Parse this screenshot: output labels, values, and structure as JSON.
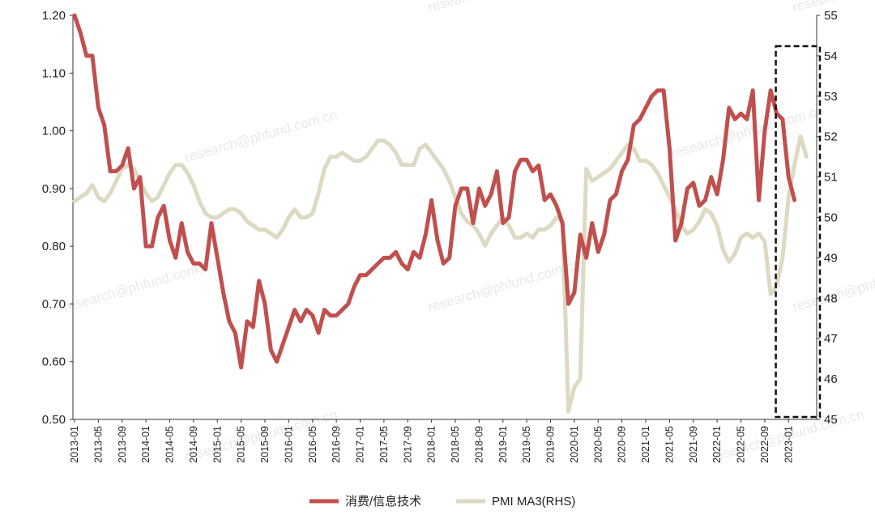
{
  "chart_data": {
    "type": "line",
    "title": "",
    "xlabel": "",
    "ylabel": "",
    "x_tick_labels": [
      "2013-01",
      "2013-05",
      "2013-09",
      "2014-01",
      "2014-05",
      "2014-09",
      "2015-01",
      "2015-05",
      "2015-09",
      "2016-01",
      "2016-05",
      "2016-09",
      "2017-01",
      "2017-05",
      "2017-09",
      "2018-01",
      "2018-05",
      "2018-09",
      "2019-01",
      "2019-05",
      "2019-09",
      "2020-01",
      "2020-05",
      "2020-09",
      "2021-01",
      "2021-05",
      "2021-09",
      "2022-01",
      "2022-05",
      "2022-09",
      "2023-01"
    ],
    "y_left": {
      "ylim": [
        0.5,
        1.2
      ],
      "ticks": [
        "0.50",
        "0.60",
        "0.70",
        "0.80",
        "0.90",
        "1.00",
        "1.10",
        "1.20"
      ]
    },
    "y_right": {
      "ylim": [
        45,
        55
      ],
      "ticks": [
        "45",
        "46",
        "47",
        "48",
        "49",
        "50",
        "51",
        "52",
        "53",
        "54",
        "55"
      ]
    },
    "series": [
      {
        "name": "消费/信息技术",
        "axis": "left",
        "color": "#c0504d",
        "values": [
          1.2,
          1.17,
          1.13,
          1.13,
          1.04,
          1.01,
          0.93,
          0.93,
          0.94,
          0.97,
          0.9,
          0.92,
          0.8,
          0.8,
          0.85,
          0.87,
          0.81,
          0.78,
          0.84,
          0.79,
          0.77,
          0.77,
          0.76,
          0.84,
          0.78,
          0.72,
          0.67,
          0.65,
          0.59,
          0.67,
          0.66,
          0.74,
          0.7,
          0.62,
          0.6,
          0.63,
          0.66,
          0.69,
          0.67,
          0.69,
          0.68,
          0.65,
          0.69,
          0.68,
          0.68,
          0.69,
          0.7,
          0.73,
          0.75,
          0.75,
          0.76,
          0.77,
          0.78,
          0.78,
          0.79,
          0.77,
          0.76,
          0.79,
          0.78,
          0.82,
          0.88,
          0.81,
          0.77,
          0.78,
          0.87,
          0.9,
          0.9,
          0.84,
          0.9,
          0.87,
          0.89,
          0.93,
          0.84,
          0.85,
          0.93,
          0.95,
          0.95,
          0.93,
          0.94,
          0.88,
          0.89,
          0.87,
          0.84,
          0.7,
          0.72,
          0.82,
          0.78,
          0.84,
          0.79,
          0.82,
          0.88,
          0.89,
          0.93,
          0.95,
          1.01,
          1.02,
          1.04,
          1.06,
          1.07,
          1.07,
          0.97,
          0.81,
          0.84,
          0.9,
          0.91,
          0.87,
          0.88,
          0.92,
          0.89,
          0.95,
          1.04,
          1.02,
          1.03,
          1.02,
          1.07,
          0.88,
          1.0,
          1.07,
          1.03,
          1.02,
          0.92,
          0.88
        ]
      },
      {
        "name": "PMI MA3(RHS)",
        "axis": "right",
        "color": "#ddd9c3",
        "values": [
          50.4,
          50.5,
          50.6,
          50.8,
          50.5,
          50.4,
          50.6,
          50.9,
          51.2,
          51.3,
          51.2,
          50.9,
          50.6,
          50.4,
          50.5,
          50.8,
          51.1,
          51.3,
          51.3,
          51.1,
          50.8,
          50.4,
          50.1,
          50.0,
          50.0,
          50.1,
          50.2,
          50.2,
          50.1,
          49.9,
          49.8,
          49.7,
          49.7,
          49.6,
          49.5,
          49.7,
          50.0,
          50.2,
          50.0,
          50.0,
          50.1,
          50.6,
          51.2,
          51.5,
          51.5,
          51.6,
          51.5,
          51.4,
          51.4,
          51.5,
          51.7,
          51.9,
          51.9,
          51.8,
          51.6,
          51.3,
          51.3,
          51.3,
          51.7,
          51.8,
          51.6,
          51.4,
          51.2,
          50.9,
          50.5,
          50.1,
          49.9,
          49.8,
          49.6,
          49.3,
          49.6,
          49.8,
          50.0,
          49.8,
          49.5,
          49.5,
          49.6,
          49.5,
          49.7,
          49.7,
          49.8,
          50.0,
          49.9,
          45.2,
          45.8,
          46.0,
          51.2,
          50.9,
          51.0,
          51.1,
          51.2,
          51.4,
          51.6,
          51.8,
          51.7,
          51.4,
          51.4,
          51.3,
          51.1,
          50.8,
          50.5,
          50.2,
          49.8,
          49.6,
          49.7,
          49.9,
          50.2,
          50.1,
          49.8,
          49.2,
          48.9,
          49.1,
          49.5,
          49.6,
          49.5,
          49.6,
          49.4,
          48.1,
          48.3,
          49.0,
          50.5,
          51.3,
          52.0,
          51.5
        ]
      }
    ],
    "highlight": {
      "type": "dashed-box",
      "x_from": "2022-11",
      "x_to": "2023-06"
    },
    "legend": {
      "position": "bottom-center"
    },
    "grid": false,
    "watermark": "research@phfund.com.cn"
  }
}
